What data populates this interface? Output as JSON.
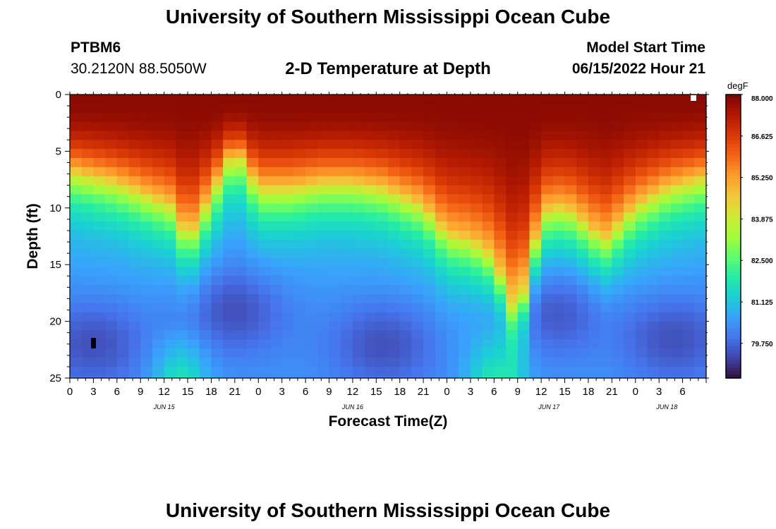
{
  "header": {
    "title": "University of Southern Mississippi Ocean Cube",
    "station_id": "PTBM6",
    "station_coords": "30.2120N  88.5050W",
    "subtitle": "2-D Temperature at Depth",
    "model_start_label": "Model Start Time",
    "model_start_value": "06/15/2022 Hour 21"
  },
  "footer": {
    "title_repeat": "University of Southern Mississippi Ocean Cube"
  },
  "chart_data": {
    "type": "heatmap",
    "title": "2-D Temperature at Depth",
    "xlabel": "Forecast Time(Z)",
    "ylabel": "Depth (ft)",
    "x_hours_range": [
      0,
      81
    ],
    "x_tick_labels": [
      "0",
      "3",
      "6",
      "9",
      "12",
      "15",
      "18",
      "21",
      "0",
      "3",
      "6",
      "9",
      "12",
      "15",
      "18",
      "21",
      "0",
      "3",
      "6",
      "9",
      "12",
      "15",
      "18",
      "21",
      "0",
      "3",
      "6"
    ],
    "date_labels": [
      {
        "hour": 12,
        "label": "JUN 15"
      },
      {
        "hour": 36,
        "label": "JUN 16"
      },
      {
        "hour": 61,
        "label": "JUN 17"
      },
      {
        "hour": 76,
        "label": "JUN 18"
      }
    ],
    "y_ticks": [
      0,
      5,
      10,
      15,
      20,
      25
    ],
    "ylim": [
      0,
      25
    ],
    "y_inverted": true,
    "colorbar": {
      "unit": "degF",
      "min": 78.6,
      "max": 88.0,
      "tick_labels": [
        "88.000",
        "86.625",
        "85.250",
        "83.875",
        "82.500",
        "81.125",
        "79.750"
      ],
      "colors": [
        "#30123b",
        "#4145ab",
        "#4675ed",
        "#39a2fc",
        "#1bcfd4",
        "#24eca6",
        "#61fc6c",
        "#a4fc3b",
        "#d1e834",
        "#f3c63a",
        "#fe9b2d",
        "#f36315",
        "#d93806",
        "#b11901",
        "#7a0402"
      ]
    },
    "warm_layer_thickness_ft": {
      "hours": [
        0,
        6,
        13,
        15,
        18,
        21,
        24,
        28,
        32,
        36,
        40,
        45,
        48,
        51,
        54,
        57,
        59,
        61,
        64,
        68,
        72,
        76,
        81
      ],
      "values": [
        6.5,
        7.5,
        9.5,
        12.5,
        8.5,
        4.5,
        8.0,
        8.0,
        7.5,
        7.5,
        8.0,
        9.5,
        12.0,
        12.5,
        14.0,
        20.0,
        13.0,
        9.5,
        10.0,
        12.5,
        9.5,
        8.0,
        7.0
      ]
    },
    "deep_cold_cores": [
      {
        "hour": 3,
        "depth_ft": 22,
        "degF": 78.8
      },
      {
        "hour": 21,
        "depth_ft": 19,
        "degF": 79.4
      },
      {
        "hour": 40,
        "depth_ft": 22,
        "degF": 79.0
      },
      {
        "hour": 77,
        "depth_ft": 21.5,
        "degF": 79.2
      },
      {
        "hour": 62,
        "depth_ft": 19,
        "degF": 80.2
      }
    ],
    "surface_max_degF": 88.0,
    "bottom_warm_intrusions_hours": [
      14,
      54
    ]
  }
}
